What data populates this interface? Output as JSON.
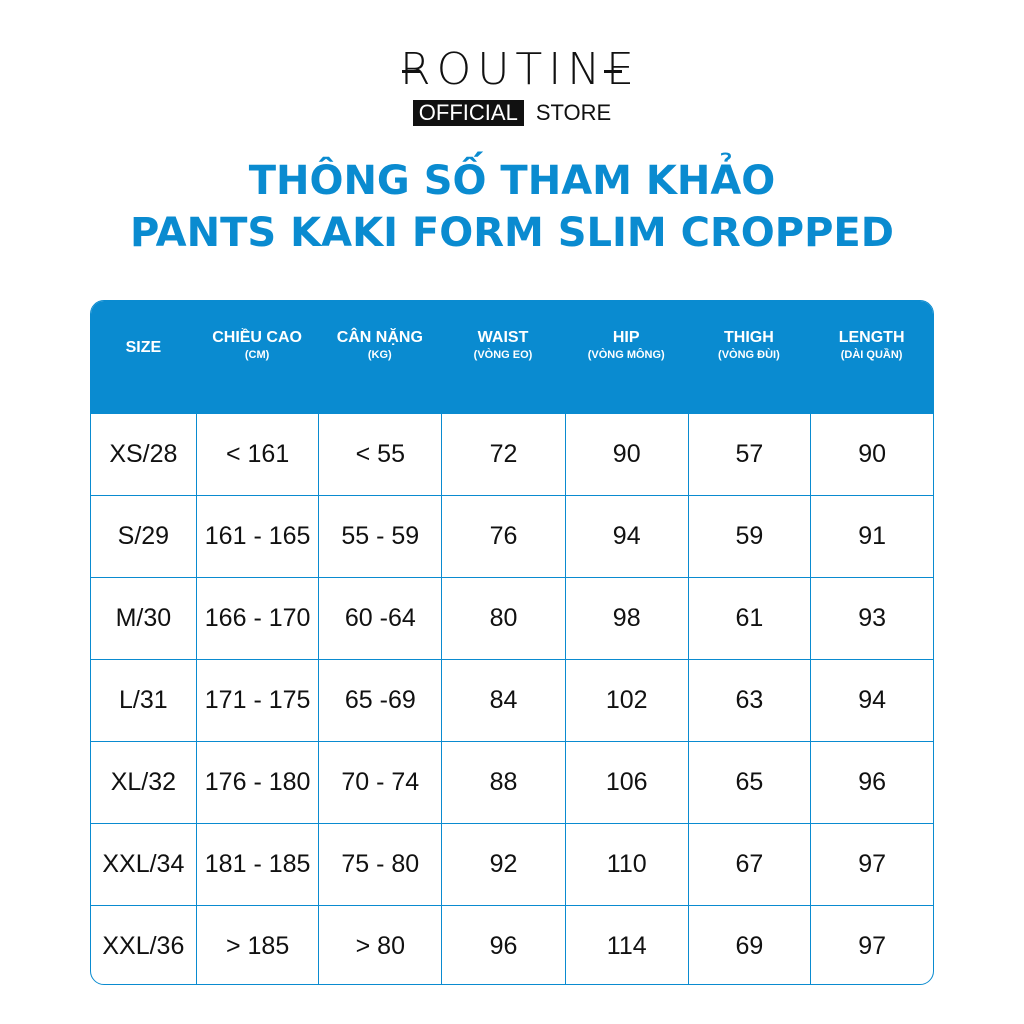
{
  "logo": {
    "brand": "ROUTINE",
    "official": "OFFICIAL",
    "store": "STORE"
  },
  "title": {
    "line1": "THÔNG SỐ THAM KHẢO",
    "line2": "PANTS KAKI FORM SLIM CROPPED"
  },
  "table": {
    "headers": [
      {
        "main": "SIZE",
        "sub": ""
      },
      {
        "main": "CHIỀU CAO",
        "sub": "(CM)"
      },
      {
        "main": "CÂN NẶNG",
        "sub": "(KG)"
      },
      {
        "main": "WAIST",
        "sub": "(VÒNG EO)"
      },
      {
        "main": "HIP",
        "sub": "(VÒNG MÔNG)"
      },
      {
        "main": "THIGH",
        "sub": "(VÒNG ĐÙI)"
      },
      {
        "main": "LENGTH",
        "sub": "(DÀI QUẦN)"
      }
    ],
    "rows": [
      [
        "XS/28",
        "< 161",
        "< 55",
        "72",
        "90",
        "57",
        "90"
      ],
      [
        "S/29",
        "161 - 165",
        "55 - 59",
        "76",
        "94",
        "59",
        "91"
      ],
      [
        "M/30",
        "166 - 170",
        "60 -64",
        "80",
        "98",
        "61",
        "93"
      ],
      [
        "L/31",
        "171 - 175",
        "65 -69",
        "84",
        "102",
        "63",
        "94"
      ],
      [
        "XL/32",
        "176 - 180",
        "70 - 74",
        "88",
        "106",
        "65",
        "96"
      ],
      [
        "XXL/34",
        "181 - 185",
        "75 - 80",
        "92",
        "110",
        "67",
        "97"
      ],
      [
        "XXL/36",
        "> 185",
        "> 80",
        "96",
        "114",
        "69",
        "97"
      ]
    ]
  },
  "colors": {
    "accent": "#0a8bd0"
  }
}
